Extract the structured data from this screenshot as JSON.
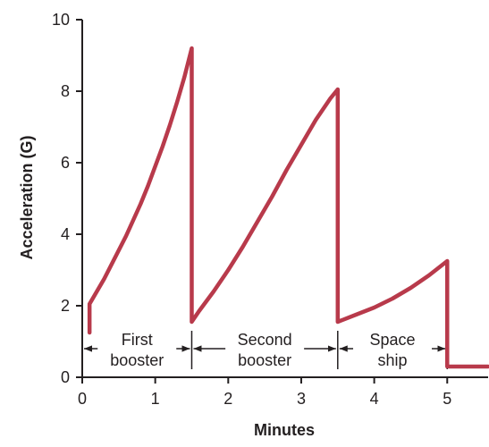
{
  "chart_data": {
    "type": "line",
    "title": "",
    "xlabel": "Minutes",
    "ylabel": "Acceleration (G)",
    "xlim": [
      0,
      5.56
    ],
    "ylim": [
      0,
      10
    ],
    "xticks": [
      "0",
      "1",
      "2",
      "3",
      "4",
      "5"
    ],
    "yticks": [
      "0",
      "2",
      "4",
      "6",
      "8",
      "10"
    ],
    "grid": false,
    "legend": "none",
    "line_color": "#b83a4b",
    "axis_color": "#231f20",
    "series": [
      {
        "x": [
          0.1,
          0.1,
          0.2,
          0.3,
          0.4,
          0.5,
          0.6,
          0.7,
          0.8,
          0.9,
          1.0,
          1.1,
          1.2,
          1.3,
          1.4,
          1.5,
          1.5,
          1.6,
          1.8,
          2.0,
          2.2,
          2.4,
          2.6,
          2.8,
          3.0,
          3.2,
          3.4,
          3.5,
          3.5,
          3.75,
          4.0,
          4.25,
          4.5,
          4.75,
          5.0,
          5.0,
          5.56
        ],
        "y": [
          1.25,
          2.05,
          2.4,
          2.75,
          3.15,
          3.55,
          3.95,
          4.4,
          4.85,
          5.35,
          5.9,
          6.45,
          7.05,
          7.7,
          8.4,
          9.2,
          1.55,
          1.85,
          2.4,
          3.0,
          3.65,
          4.35,
          5.05,
          5.8,
          6.5,
          7.2,
          7.8,
          8.05,
          1.55,
          1.75,
          1.95,
          2.2,
          2.5,
          2.85,
          3.25,
          0.3,
          0.3
        ]
      }
    ],
    "phases": [
      {
        "label_lines": [
          "First",
          "booster"
        ],
        "start": 0,
        "end": 1.5
      },
      {
        "label_lines": [
          "Second",
          "booster"
        ],
        "start": 1.5,
        "end": 3.5
      },
      {
        "label_lines": [
          "Space",
          "ship"
        ],
        "start": 3.5,
        "end": 5.0
      }
    ]
  }
}
